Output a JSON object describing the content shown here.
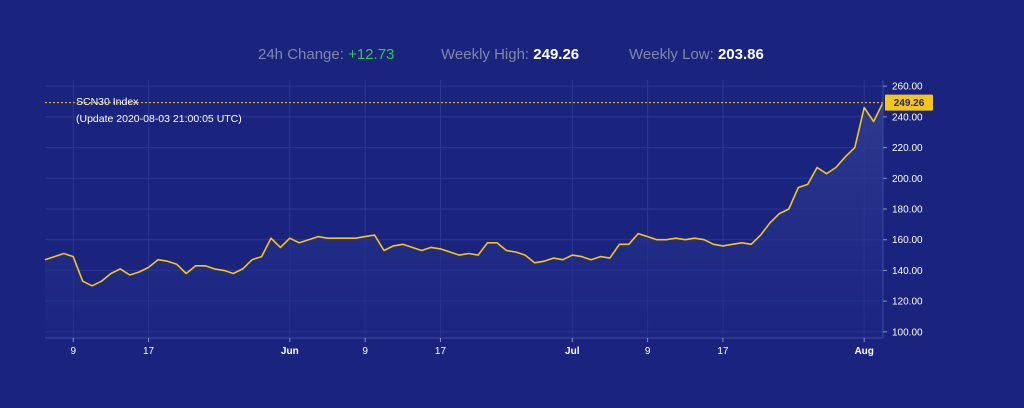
{
  "stats": {
    "change_label": "24h Change:",
    "change_value": "+12.73",
    "high_label": "Weekly High:",
    "high_value": "249.26",
    "low_label": "Weekly Low:",
    "low_value": "203.86"
  },
  "chart_data": {
    "type": "area",
    "title": "SCN30 Index",
    "subtitle": "(Update 2020-08-03 21:00:05 UTC)",
    "last_price": 249.26,
    "last_price_label": "249.26",
    "ylim": [
      96,
      264
    ],
    "y_ticks": [
      "100.00",
      "120.00",
      "140.00",
      "160.00",
      "180.00",
      "200.00",
      "220.00",
      "240.00",
      "260.00"
    ],
    "y_tick_values": [
      100,
      120,
      140,
      160,
      180,
      200,
      220,
      240,
      260
    ],
    "x_ticks": [
      {
        "label": "9",
        "date": "2020-05-09",
        "bold": false
      },
      {
        "label": "17",
        "date": "2020-05-17",
        "bold": false
      },
      {
        "label": "Jun",
        "date": "2020-06-01",
        "bold": true
      },
      {
        "label": "9",
        "date": "2020-06-09",
        "bold": false
      },
      {
        "label": "17",
        "date": "2020-06-17",
        "bold": false
      },
      {
        "label": "Jul",
        "date": "2020-07-01",
        "bold": true
      },
      {
        "label": "9",
        "date": "2020-07-09",
        "bold": false
      },
      {
        "label": "17",
        "date": "2020-07-17",
        "bold": false
      },
      {
        "label": "Aug",
        "date": "2020-08-01",
        "bold": true
      }
    ],
    "x_range": [
      "2020-05-06",
      "2020-08-03"
    ],
    "grid": true,
    "line_color": "#f5c518",
    "series": [
      {
        "x": [
          "2020-05-06",
          "2020-05-07",
          "2020-05-08",
          "2020-05-09",
          "2020-05-10",
          "2020-05-11",
          "2020-05-12",
          "2020-05-13",
          "2020-05-14",
          "2020-05-15",
          "2020-05-16",
          "2020-05-17",
          "2020-05-18",
          "2020-05-19",
          "2020-05-20",
          "2020-05-21",
          "2020-05-22",
          "2020-05-23",
          "2020-05-24",
          "2020-05-25",
          "2020-05-26",
          "2020-05-27",
          "2020-05-28",
          "2020-05-29",
          "2020-05-30",
          "2020-05-31",
          "2020-06-01",
          "2020-06-02",
          "2020-06-03",
          "2020-06-04",
          "2020-06-05",
          "2020-06-06",
          "2020-06-07",
          "2020-06-08",
          "2020-06-09",
          "2020-06-10",
          "2020-06-11",
          "2020-06-12",
          "2020-06-13",
          "2020-06-14",
          "2020-06-15",
          "2020-06-16",
          "2020-06-17",
          "2020-06-18",
          "2020-06-19",
          "2020-06-20",
          "2020-06-21",
          "2020-06-22",
          "2020-06-23",
          "2020-06-24",
          "2020-06-25",
          "2020-06-26",
          "2020-06-27",
          "2020-06-28",
          "2020-06-29",
          "2020-06-30",
          "2020-07-01",
          "2020-07-02",
          "2020-07-03",
          "2020-07-04",
          "2020-07-05",
          "2020-07-06",
          "2020-07-07",
          "2020-07-08",
          "2020-07-09",
          "2020-07-10",
          "2020-07-11",
          "2020-07-12",
          "2020-07-13",
          "2020-07-14",
          "2020-07-15",
          "2020-07-16",
          "2020-07-17",
          "2020-07-18",
          "2020-07-19",
          "2020-07-20",
          "2020-07-21",
          "2020-07-22",
          "2020-07-23",
          "2020-07-24",
          "2020-07-25",
          "2020-07-26",
          "2020-07-27",
          "2020-07-28",
          "2020-07-29",
          "2020-07-30",
          "2020-07-31",
          "2020-08-01",
          "2020-08-02",
          "2020-08-03"
        ],
        "y": [
          147,
          149,
          151,
          149,
          133,
          130,
          133,
          138,
          141,
          137,
          139,
          142,
          147,
          146,
          144,
          138,
          143,
          143,
          141,
          140,
          138,
          141,
          147,
          149,
          161,
          155,
          161,
          158,
          160,
          162,
          161,
          161,
          161,
          161,
          162,
          163,
          153,
          156,
          157,
          155,
          153,
          155,
          154,
          152,
          150,
          151,
          150,
          158,
          158,
          153,
          152,
          150,
          145,
          146,
          148,
          147,
          150,
          149,
          147,
          149,
          148,
          157,
          157,
          164,
          162,
          160,
          160,
          161,
          160,
          161,
          160,
          157,
          156,
          157,
          158,
          157,
          163,
          171,
          177,
          180,
          194,
          196,
          207,
          203,
          207,
          214,
          220,
          246,
          237,
          249.26
        ]
      }
    ]
  }
}
